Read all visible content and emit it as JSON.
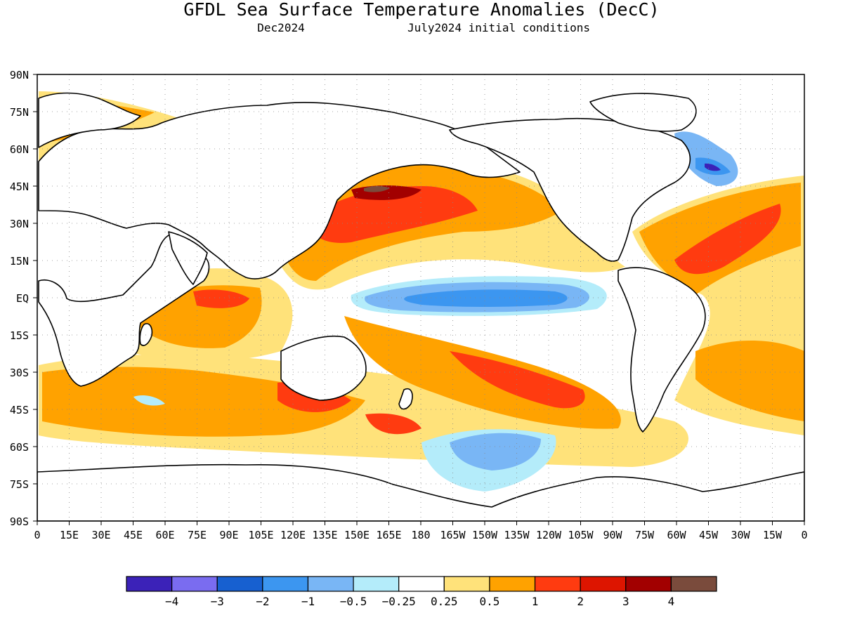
{
  "title": "GFDL Sea Surface Temperature Anomalies (DecC)",
  "subtitle_left": "Dec2024",
  "subtitle_right": "July2024 initial conditions",
  "map": {
    "lon_labels": [
      "0",
      "15E",
      "30E",
      "45E",
      "60E",
      "75E",
      "90E",
      "105E",
      "120E",
      "135E",
      "150E",
      "165E",
      "180",
      "165W",
      "150W",
      "135W",
      "120W",
      "105W",
      "90W",
      "75W",
      "60W",
      "45W",
      "30W",
      "15W",
      "0"
    ],
    "lat_labels": [
      "90N",
      "75N",
      "60N",
      "45N",
      "30N",
      "15N",
      "EQ",
      "15S",
      "30S",
      "45S",
      "60S",
      "75S",
      "90S"
    ],
    "lat_range": [
      -90,
      90
    ],
    "lon_range": [
      0,
      360
    ],
    "grid": true,
    "projection": "equirectangular"
  },
  "colorbar": {
    "colors": [
      "#3b22b8",
      "#7a6cf0",
      "#1760d0",
      "#3c96f0",
      "#79b6f5",
      "#b4ecfa",
      "#ffffff",
      "#ffe27a",
      "#ffa200",
      "#ff3b10",
      "#dd1500",
      "#a20000",
      "#7a4b3c"
    ],
    "tick_labels": [
      "−4",
      "−3",
      "−2",
      "−1",
      "−0.5",
      "−0.25",
      "0.25",
      "0.5",
      "1",
      "2",
      "3",
      "4"
    ]
  },
  "anomaly_features": [
    {
      "name": "central-pacific-cold-tongue",
      "level": "-2"
    },
    {
      "name": "north-pacific-warm-band",
      "level": "2"
    },
    {
      "name": "kuroshio-extension-hotspot",
      "level": "4"
    },
    {
      "name": "north-atlantic-cold-patch",
      "level": "-3"
    },
    {
      "name": "southern-ocean-cold-patch",
      "level": "-1"
    },
    {
      "name": "south-pacific-warm-band",
      "level": "2"
    },
    {
      "name": "indian-ocean-warm-band",
      "level": "2"
    }
  ]
}
